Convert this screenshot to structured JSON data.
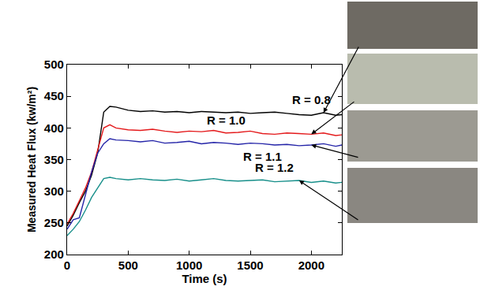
{
  "chart_data": {
    "type": "line",
    "x_label": "Time (s)",
    "y_label": "Measured Heat Flux (kw/m²)",
    "x": [
      0,
      50,
      100,
      150,
      200,
      250,
      300,
      350,
      400,
      500,
      600,
      700,
      800,
      900,
      1000,
      1100,
      1200,
      1300,
      1400,
      1500,
      1600,
      1700,
      1800,
      1900,
      2000,
      2100,
      2200,
      2250
    ],
    "series": [
      {
        "name": "R = 0.8",
        "color": "#000000",
        "values": [
          245,
          262,
          282,
          300,
          325,
          360,
          425,
          434,
          433,
          428,
          426,
          427,
          425,
          426,
          424,
          426,
          425,
          424,
          425,
          423,
          424,
          425,
          423,
          421,
          420,
          424,
          420,
          421
        ]
      },
      {
        "name": "R = 1.0",
        "color": "#e41a1c",
        "values": [
          248,
          265,
          285,
          305,
          330,
          365,
          400,
          405,
          400,
          397,
          396,
          398,
          395,
          393,
          395,
          394,
          396,
          392,
          393,
          395,
          391,
          390,
          392,
          391,
          390,
          392,
          388,
          389
        ]
      },
      {
        "name": "R = 1.1",
        "color": "#2424a8",
        "values": [
          240,
          255,
          258,
          295,
          330,
          360,
          375,
          383,
          381,
          380,
          378,
          380,
          376,
          377,
          379,
          375,
          377,
          376,
          374,
          376,
          375,
          373,
          374,
          372,
          373,
          375,
          371,
          373
        ]
      },
      {
        "name": "R = 1.2",
        "color": "#178f8a",
        "values": [
          230,
          240,
          252,
          270,
          290,
          305,
          320,
          322,
          320,
          318,
          320,
          318,
          317,
          319,
          316,
          318,
          320,
          317,
          316,
          317,
          318,
          315,
          316,
          317,
          314,
          316,
          313,
          314
        ]
      }
    ],
    "xlim": [
      0,
      2250
    ],
    "xticks": [
      0,
      500,
      1000,
      1500,
      2000
    ],
    "ylim": [
      200,
      500
    ],
    "yticks": [
      200,
      250,
      300,
      350,
      400,
      450,
      500
    ],
    "grid": false,
    "legend": "none"
  }
}
